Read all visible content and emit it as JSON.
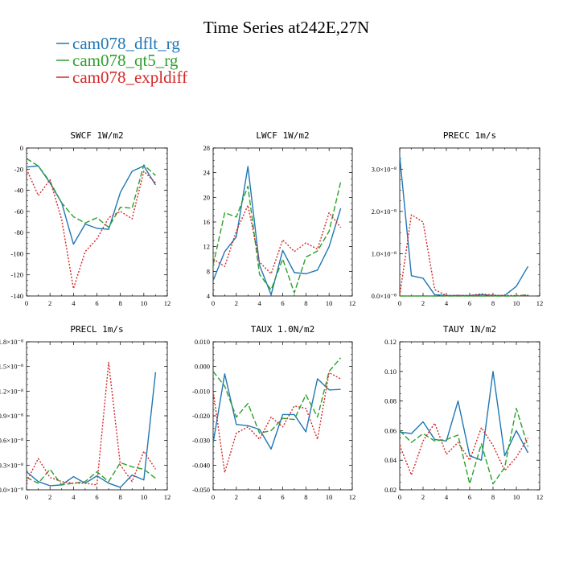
{
  "title": "Time Series at242E,27N",
  "legend": [
    {
      "label": "cam078_dflt_rg",
      "color": "#1f77b4",
      "dash": ""
    },
    {
      "label": "cam078_qt5_rg",
      "color": "#2ca02c",
      "dash": "7,3"
    },
    {
      "label": "cam078_expldiff",
      "color": "#d62728",
      "dash": "2,2"
    }
  ],
  "chart_data": [
    {
      "type": "line",
      "title": "SWCF",
      "units": "1W/m2",
      "x": [
        0,
        1,
        2,
        3,
        4,
        5,
        6,
        7,
        8,
        9,
        10,
        11
      ],
      "xlim": [
        0,
        12
      ],
      "xticks": [
        0,
        2,
        4,
        6,
        8,
        10,
        12
      ],
      "ylim": [
        -140,
        0
      ],
      "yticks": [
        0,
        -20,
        -40,
        -60,
        -80,
        -100,
        -120,
        -140
      ],
      "ytick_labels": [
        "0",
        "-20",
        "-40",
        "-60",
        "-80",
        "-100",
        "-120",
        "-140"
      ],
      "series": [
        {
          "name": "cam078_dflt_rg",
          "values": [
            -18,
            -17,
            -33,
            -52,
            -91,
            -72,
            -76,
            -77,
            -42,
            -22,
            -17,
            -35
          ]
        },
        {
          "name": "cam078_qt5_rg",
          "values": [
            -10,
            -17,
            -32,
            -52,
            -65,
            -71,
            -66,
            -75,
            -56,
            -57,
            -16,
            -26
          ]
        },
        {
          "name": "cam078_expldiff",
          "values": [
            -20,
            -45,
            -30,
            -68,
            -133,
            -98,
            -86,
            -66,
            -60,
            -67,
            -22,
            -33
          ]
        }
      ]
    },
    {
      "type": "line",
      "title": "LWCF",
      "units": "1W/m2",
      "x": [
        0,
        1,
        2,
        3,
        4,
        5,
        6,
        7,
        8,
        9,
        10,
        11
      ],
      "xlim": [
        0,
        12
      ],
      "xticks": [
        0,
        2,
        4,
        6,
        8,
        10,
        12
      ],
      "ylim": [
        4,
        28
      ],
      "yticks": [
        4,
        8,
        12,
        16,
        20,
        24,
        28
      ],
      "ytick_labels": [
        "4",
        "8",
        "12",
        "16",
        "20",
        "24",
        "28"
      ],
      "series": [
        {
          "name": "cam078_dflt_rg",
          "values": [
            6.5,
            11.2,
            13.6,
            25.0,
            9.0,
            4.2,
            11.4,
            7.8,
            7.6,
            8.2,
            12.0,
            18.2
          ]
        },
        {
          "name": "cam078_qt5_rg",
          "values": [
            9.0,
            17.5,
            16.8,
            21.8,
            7.5,
            5.0,
            10.0,
            4.5,
            10.3,
            11.3,
            14.5,
            22.5
          ]
        },
        {
          "name": "cam078_expldiff",
          "values": [
            10.0,
            8.8,
            14.5,
            18.7,
            9.5,
            7.6,
            13.1,
            11.2,
            12.6,
            11.6,
            17.5,
            15.1
          ]
        }
      ]
    },
    {
      "type": "line",
      "title": "PRECC",
      "units": "1m/s",
      "x": [
        0,
        1,
        2,
        3,
        4,
        5,
        6,
        7,
        8,
        9,
        10,
        11
      ],
      "xlim": [
        0,
        12
      ],
      "xticks": [
        0,
        2,
        4,
        6,
        8,
        10,
        12
      ],
      "ylim": [
        0,
        3.5e-08
      ],
      "yticks": [
        0,
        1e-08,
        2e-08,
        3e-08
      ],
      "ytick_labels": [
        "0.0×10⁻⁸",
        "1.0×10⁻⁸",
        "2.0×10⁻⁸",
        "3.0×10⁻⁸"
      ],
      "series": [
        {
          "name": "cam078_dflt_rg",
          "values": [
            3.3e-08,
            4.8e-09,
            4.2e-09,
            3e-10,
            1e-10,
            1e-10,
            1e-10,
            3e-10,
            1e-10,
            1e-10,
            2.3e-09,
            7e-09
          ]
        },
        {
          "name": "cam078_qt5_rg",
          "values": [
            0,
            0,
            0,
            0,
            0,
            0,
            0,
            0,
            0,
            0,
            0,
            3e-10
          ]
        },
        {
          "name": "cam078_expldiff",
          "values": [
            1e-10,
            1.92e-08,
            1.75e-08,
            1.5e-09,
            1e-10,
            1e-10,
            1e-10,
            5e-10,
            2e-10,
            1e-10,
            1e-10,
            1e-10
          ]
        }
      ]
    },
    {
      "type": "line",
      "title": "PRECL",
      "units": "1m/s",
      "x": [
        0,
        1,
        2,
        3,
        4,
        5,
        6,
        7,
        8,
        9,
        10,
        11
      ],
      "xlim": [
        0,
        12
      ],
      "xticks": [
        0,
        2,
        4,
        6,
        8,
        10,
        12
      ],
      "ylim": [
        0,
        1.8e-08
      ],
      "yticks": [
        0,
        3e-09,
        6e-09,
        9e-09,
        1.2e-08,
        1.5e-08,
        1.8e-08
      ],
      "ytick_labels": [
        "0.0×10⁻⁸",
        "0.3×10⁻⁸",
        "0.6×10⁻⁸",
        "0.9×10⁻⁸",
        "1.2×10⁻⁸",
        "1.5×10⁻⁸",
        "1.8×10⁻⁸"
      ],
      "series": [
        {
          "name": "cam078_dflt_rg",
          "values": [
            2.2e-09,
            1e-09,
            5e-10,
            6e-10,
            1.6e-09,
            8e-10,
            1.7e-09,
            8e-10,
            3e-10,
            1.8e-09,
            1.2e-09,
            1.43e-08
          ]
        },
        {
          "name": "cam078_qt5_rg",
          "values": [
            1.5e-09,
            8e-10,
            2.5e-09,
            6e-10,
            8e-10,
            1e-09,
            2.2e-09,
            1e-09,
            3.3e-09,
            2.8e-09,
            2.5e-09,
            1.4e-09
          ]
        },
        {
          "name": "cam078_expldiff",
          "values": [
            1e-09,
            3.8e-09,
            1.5e-09,
            1e-09,
            8e-10,
            8e-10,
            6e-10,
            1.55e-08,
            3e-09,
            1e-09,
            4.7e-09,
            2.5e-09
          ]
        }
      ]
    },
    {
      "type": "line",
      "title": "TAUX",
      "units": "1.0N/m2",
      "x": [
        0,
        1,
        2,
        3,
        4,
        5,
        6,
        7,
        8,
        9,
        10,
        11
      ],
      "xlim": [
        0,
        12
      ],
      "xticks": [
        0,
        2,
        4,
        6,
        8,
        10,
        12
      ],
      "ylim": [
        -0.05,
        0.01
      ],
      "yticks": [
        0.01,
        0,
        -0.01,
        -0.02,
        -0.03,
        -0.04,
        -0.05
      ],
      "ytick_labels": [
        "0.010",
        "0.000",
        "-0.010",
        "-0.020",
        "-0.030",
        "-0.040",
        "-0.050"
      ],
      "series": [
        {
          "name": "cam078_dflt_rg",
          "values": [
            -0.031,
            -0.003,
            -0.0235,
            -0.024,
            -0.0255,
            -0.0335,
            -0.0195,
            -0.0195,
            -0.0265,
            -0.005,
            -0.0095,
            -0.0093
          ]
        },
        {
          "name": "cam078_qt5_rg",
          "values": [
            -0.002,
            -0.008,
            -0.0205,
            -0.015,
            -0.027,
            -0.026,
            -0.021,
            -0.0215,
            -0.0115,
            -0.0205,
            -0.002,
            0.0035
          ]
        },
        {
          "name": "cam078_expldiff",
          "values": [
            -0.01,
            -0.043,
            -0.027,
            -0.0245,
            -0.0295,
            -0.0205,
            -0.0245,
            -0.016,
            -0.017,
            -0.0295,
            -0.0025,
            -0.005
          ]
        }
      ]
    },
    {
      "type": "line",
      "title": "TAUY",
      "units": "1N/m2",
      "x": [
        0,
        1,
        2,
        3,
        4,
        5,
        6,
        7,
        8,
        9,
        10,
        11
      ],
      "xlim": [
        0,
        12
      ],
      "xticks": [
        0,
        2,
        4,
        6,
        8,
        10,
        12
      ],
      "ylim": [
        0.02,
        0.12
      ],
      "yticks": [
        0.02,
        0.04,
        0.06,
        0.08,
        0.1,
        0.12
      ],
      "ytick_labels": [
        "0.02",
        "0.04",
        "0.06",
        "0.08",
        "0.10",
        "0.12"
      ],
      "series": [
        {
          "name": "cam078_dflt_rg",
          "values": [
            0.059,
            0.058,
            0.066,
            0.054,
            0.053,
            0.08,
            0.043,
            0.04,
            0.1,
            0.043,
            0.06,
            0.045
          ]
        },
        {
          "name": "cam078_qt5_rg",
          "values": [
            0.06,
            0.052,
            0.058,
            0.053,
            0.054,
            0.057,
            0.024,
            0.051,
            0.024,
            0.035,
            0.075,
            0.049
          ]
        },
        {
          "name": "cam078_expldiff",
          "values": [
            0.05,
            0.03,
            0.053,
            0.065,
            0.044,
            0.052,
            0.04,
            0.062,
            0.05,
            0.033,
            0.042,
            0.055
          ]
        }
      ]
    }
  ]
}
